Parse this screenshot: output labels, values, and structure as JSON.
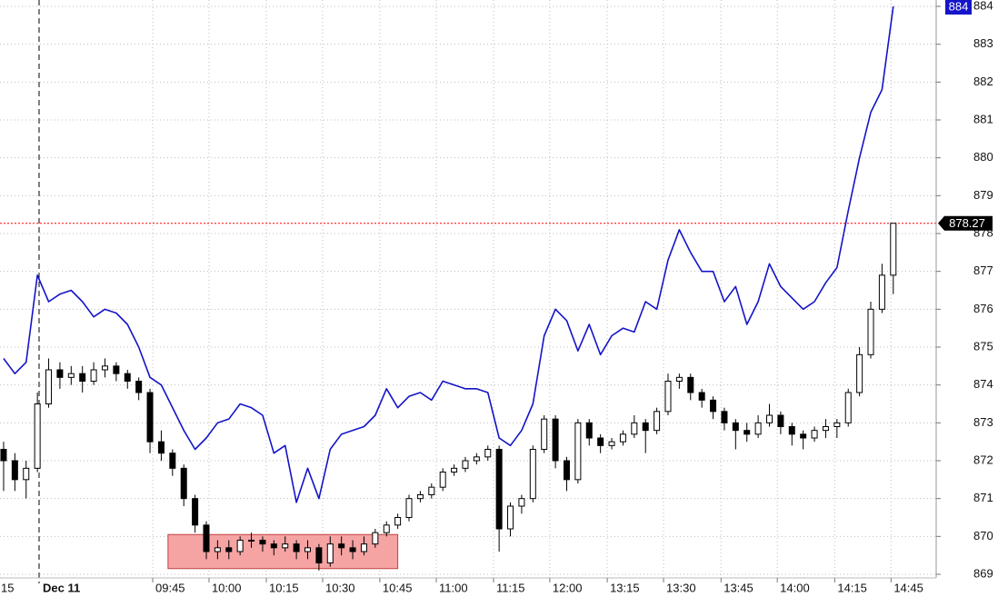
{
  "chart_data": {
    "type": "candlestick",
    "ohlc": [
      [
        872.3,
        872.5,
        871.2,
        872.0
      ],
      [
        872.0,
        872.2,
        871.2,
        871.5
      ],
      [
        871.5,
        872.0,
        871.0,
        871.8
      ],
      [
        871.8,
        873.8,
        871.7,
        873.5
      ],
      [
        873.5,
        874.7,
        873.4,
        874.4
      ],
      [
        874.4,
        874.6,
        873.9,
        874.2
      ],
      [
        874.2,
        874.5,
        874.0,
        874.3
      ],
      [
        874.3,
        874.5,
        873.8,
        874.1
      ],
      [
        874.1,
        874.6,
        874.0,
        874.4
      ],
      [
        874.4,
        874.7,
        874.2,
        874.5
      ],
      [
        874.5,
        874.6,
        874.1,
        874.3
      ],
      [
        874.3,
        874.4,
        873.9,
        874.1
      ],
      [
        874.1,
        874.2,
        873.6,
        873.8
      ],
      [
        873.8,
        873.9,
        872.2,
        872.5
      ],
      [
        872.5,
        872.8,
        872.0,
        872.2
      ],
      [
        872.2,
        872.3,
        871.6,
        871.8
      ],
      [
        871.8,
        871.9,
        870.8,
        871.0
      ],
      [
        871.0,
        871.1,
        870.1,
        870.3
      ],
      [
        870.3,
        870.4,
        869.4,
        869.6
      ],
      [
        869.6,
        869.9,
        869.4,
        869.7
      ],
      [
        869.7,
        869.9,
        869.4,
        869.6
      ],
      [
        869.6,
        870.0,
        869.5,
        869.9
      ],
      [
        869.9,
        870.1,
        869.7,
        869.9
      ],
      [
        869.9,
        870.0,
        869.6,
        869.8
      ],
      [
        869.8,
        869.9,
        869.5,
        869.7
      ],
      [
        869.7,
        870.0,
        869.6,
        869.8
      ],
      [
        869.8,
        869.9,
        869.4,
        869.6
      ],
      [
        869.6,
        869.9,
        869.4,
        869.7
      ],
      [
        869.7,
        869.8,
        869.1,
        869.3
      ],
      [
        869.3,
        870.0,
        869.2,
        869.8
      ],
      [
        869.8,
        870.0,
        869.5,
        869.7
      ],
      [
        869.7,
        869.9,
        869.4,
        869.6
      ],
      [
        869.6,
        870.0,
        869.5,
        869.8
      ],
      [
        869.8,
        870.2,
        869.7,
        870.1
      ],
      [
        870.1,
        870.4,
        870.0,
        870.3
      ],
      [
        870.3,
        870.6,
        870.2,
        870.5
      ],
      [
        870.5,
        871.1,
        870.4,
        871.0
      ],
      [
        871.0,
        871.2,
        870.9,
        871.1
      ],
      [
        871.1,
        871.4,
        871.0,
        871.3
      ],
      [
        871.3,
        871.8,
        871.2,
        871.7
      ],
      [
        871.7,
        871.9,
        871.6,
        871.8
      ],
      [
        871.8,
        872.1,
        871.7,
        872.0
      ],
      [
        872.0,
        872.2,
        871.9,
        872.1
      ],
      [
        872.1,
        872.4,
        872.0,
        872.3
      ],
      [
        872.3,
        872.4,
        869.6,
        870.2
      ],
      [
        870.2,
        870.9,
        870.0,
        870.8
      ],
      [
        870.8,
        871.1,
        870.6,
        871.0
      ],
      [
        871.0,
        872.4,
        870.9,
        872.3
      ],
      [
        872.3,
        873.2,
        872.2,
        873.1
      ],
      [
        873.1,
        873.2,
        871.8,
        872.0
      ],
      [
        872.0,
        872.1,
        871.2,
        871.5
      ],
      [
        871.5,
        873.1,
        871.4,
        873.0
      ],
      [
        873.0,
        873.1,
        872.4,
        872.6
      ],
      [
        872.6,
        872.7,
        872.2,
        872.4
      ],
      [
        872.4,
        872.6,
        872.3,
        872.5
      ],
      [
        872.5,
        872.8,
        872.4,
        872.7
      ],
      [
        872.7,
        873.2,
        872.6,
        873.0
      ],
      [
        873.0,
        873.1,
        872.2,
        872.8
      ],
      [
        872.8,
        873.4,
        872.7,
        873.3
      ],
      [
        873.3,
        874.3,
        873.2,
        874.1
      ],
      [
        874.1,
        874.3,
        873.9,
        874.2
      ],
      [
        874.2,
        874.3,
        873.6,
        873.8
      ],
      [
        873.8,
        873.9,
        873.4,
        873.6
      ],
      [
        873.6,
        873.7,
        873.1,
        873.3
      ],
      [
        873.3,
        873.4,
        872.8,
        873.0
      ],
      [
        873.0,
        873.1,
        872.3,
        872.8
      ],
      [
        872.8,
        873.0,
        872.5,
        872.7
      ],
      [
        872.7,
        873.2,
        872.6,
        873.0
      ],
      [
        873.0,
        873.5,
        872.9,
        873.2
      ],
      [
        873.2,
        873.3,
        872.7,
        872.9
      ],
      [
        872.9,
        873.0,
        872.4,
        872.7
      ],
      [
        872.7,
        872.8,
        872.3,
        872.6
      ],
      [
        872.6,
        872.9,
        872.5,
        872.8
      ],
      [
        872.8,
        873.1,
        872.6,
        872.9
      ],
      [
        872.9,
        873.1,
        872.6,
        873.0
      ],
      [
        873.0,
        873.9,
        872.9,
        873.8
      ],
      [
        873.8,
        875.0,
        873.7,
        874.8
      ],
      [
        874.8,
        876.2,
        874.7,
        876.0
      ],
      [
        876.0,
        877.2,
        875.9,
        876.9
      ],
      [
        876.9,
        878.27,
        876.4,
        878.27
      ]
    ],
    "candle_color": "#000000",
    "last_label": "878.27",
    "last_line_color": "#ff0000",
    "overlay": {
      "type": "line",
      "color": "#1414c8",
      "last_label": "884",
      "values": [
        874.7,
        874.3,
        874.6,
        876.9,
        876.2,
        876.4,
        876.5,
        876.2,
        875.8,
        876.0,
        875.9,
        875.6,
        875.0,
        874.2,
        874.0,
        873.4,
        872.8,
        872.3,
        872.6,
        873.0,
        873.1,
        873.5,
        873.4,
        873.2,
        872.2,
        872.4,
        870.9,
        871.8,
        871.0,
        872.3,
        872.7,
        872.8,
        872.9,
        873.2,
        873.9,
        873.4,
        873.7,
        873.8,
        873.6,
        874.1,
        874.0,
        873.9,
        873.9,
        873.8,
        872.6,
        872.4,
        872.8,
        873.5,
        875.3,
        876.0,
        875.7,
        874.9,
        875.6,
        874.8,
        875.3,
        875.5,
        875.4,
        876.2,
        876.0,
        877.3,
        878.1,
        877.5,
        877.0,
        877.0,
        876.2,
        876.6,
        875.6,
        876.2,
        877.2,
        876.6,
        876.3,
        876.0,
        876.2,
        876.7,
        877.1,
        878.6,
        880.0,
        881.2,
        881.8,
        884.0
      ]
    },
    "xlim": [
      -0.32,
      82.81
    ],
    "ylim": [
      869,
      884
    ],
    "yticks": [
      869,
      870,
      871,
      872,
      873,
      874,
      875,
      876,
      877,
      878,
      879,
      880,
      881,
      882,
      883,
      884
    ],
    "xticks": [
      {
        "value": -1.2,
        "label": "15"
      },
      {
        "value": 13.24,
        "label": "09:45"
      },
      {
        "value": 18.24,
        "label": "10:00"
      },
      {
        "value": 23.33,
        "label": "10:15"
      },
      {
        "value": 28.33,
        "label": "10:30"
      },
      {
        "value": 33.41,
        "label": "10:45"
      },
      {
        "value": 38.42,
        "label": "11:00"
      },
      {
        "value": 43.5,
        "label": "11:15"
      },
      {
        "value": 48.5,
        "label": "12:00"
      },
      {
        "value": 53.6,
        "label": "13:15"
      },
      {
        "value": 58.6,
        "label": "13:30"
      },
      {
        "value": 63.7,
        "label": "13:45"
      },
      {
        "value": 68.7,
        "label": "14:00"
      },
      {
        "value": 73.8,
        "label": "14:15"
      },
      {
        "value": 78.8,
        "label": "14:45"
      }
    ],
    "session_break": {
      "x": 3.15,
      "label": "Dec 11"
    },
    "highlight": {
      "x": [
        14.6,
        35.0
      ],
      "y": [
        869.15,
        870.05
      ],
      "color": "#f5a3a3"
    },
    "grid": true
  }
}
